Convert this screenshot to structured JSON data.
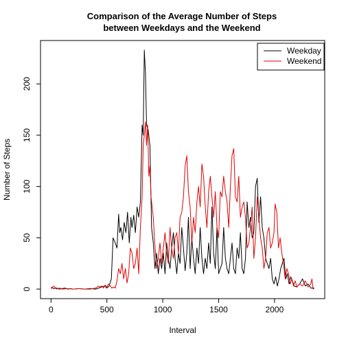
{
  "chart_data": {
    "type": "line",
    "title": [
      "Comparison of the Average Number of Steps",
      "between Weekdays and the Weekend"
    ],
    "xlabel": "Interval",
    "ylabel": "Number of Steps",
    "xlim": [
      -94,
      2449
    ],
    "ylim": [
      -9.3,
      242.3
    ],
    "xticks": [
      0,
      500,
      1000,
      1500,
      2000
    ],
    "yticks": [
      0,
      50,
      100,
      150,
      200
    ],
    "grid": false,
    "legend_position": "top-right",
    "series": [
      {
        "name": "Weekday",
        "color": "#000000",
        "points": [
          [
            0,
            2
          ],
          [
            25,
            0.5
          ],
          [
            50,
            1
          ],
          [
            75,
            0
          ],
          [
            100,
            0.5
          ],
          [
            125,
            1
          ],
          [
            150,
            0
          ],
          [
            175,
            0.5
          ],
          [
            200,
            0
          ],
          [
            250,
            0.5
          ],
          [
            300,
            0
          ],
          [
            350,
            0.5
          ],
          [
            400,
            0
          ],
          [
            450,
            2
          ],
          [
            480,
            3
          ],
          [
            500,
            1
          ],
          [
            520,
            3
          ],
          [
            540,
            10
          ],
          [
            555,
            50
          ],
          [
            575,
            45
          ],
          [
            590,
            40
          ],
          [
            605,
            73
          ],
          [
            615,
            55
          ],
          [
            625,
            60
          ],
          [
            640,
            48
          ],
          [
            655,
            65
          ],
          [
            670,
            55
          ],
          [
            685,
            75
          ],
          [
            700,
            45
          ],
          [
            715,
            70
          ],
          [
            725,
            60
          ],
          [
            740,
            72
          ],
          [
            755,
            55
          ],
          [
            770,
            80
          ],
          [
            785,
            70
          ],
          [
            800,
            85
          ],
          [
            815,
            160
          ],
          [
            825,
            150
          ],
          [
            835,
            233
          ],
          [
            845,
            210
          ],
          [
            855,
            160
          ],
          [
            870,
            155
          ],
          [
            885,
            140
          ],
          [
            900,
            60
          ],
          [
            915,
            45
          ],
          [
            930,
            20
          ],
          [
            945,
            35
          ],
          [
            960,
            15
          ],
          [
            975,
            30
          ],
          [
            990,
            20
          ],
          [
            1005,
            35
          ],
          [
            1020,
            15
          ],
          [
            1035,
            45
          ],
          [
            1050,
            30
          ],
          [
            1065,
            20
          ],
          [
            1080,
            40
          ],
          [
            1095,
            55
          ],
          [
            1110,
            30
          ],
          [
            1125,
            15
          ],
          [
            1140,
            35
          ],
          [
            1155,
            25
          ],
          [
            1170,
            60
          ],
          [
            1185,
            40
          ],
          [
            1200,
            18
          ],
          [
            1215,
            35
          ],
          [
            1230,
            70
          ],
          [
            1245,
            20
          ],
          [
            1260,
            50
          ],
          [
            1275,
            30
          ],
          [
            1290,
            15
          ],
          [
            1305,
            40
          ],
          [
            1320,
            25
          ],
          [
            1335,
            60
          ],
          [
            1350,
            30
          ],
          [
            1365,
            15
          ],
          [
            1380,
            30
          ],
          [
            1395,
            20
          ],
          [
            1410,
            45
          ],
          [
            1425,
            25
          ],
          [
            1440,
            80
          ],
          [
            1455,
            35
          ],
          [
            1470,
            20
          ],
          [
            1485,
            60
          ],
          [
            1500,
            15
          ],
          [
            1515,
            20
          ],
          [
            1530,
            25
          ],
          [
            1545,
            60
          ],
          [
            1560,
            30
          ],
          [
            1575,
            20
          ],
          [
            1590,
            15
          ],
          [
            1605,
            30
          ],
          [
            1620,
            45
          ],
          [
            1635,
            20
          ],
          [
            1650,
            15
          ],
          [
            1665,
            40
          ],
          [
            1680,
            30
          ],
          [
            1695,
            55
          ],
          [
            1710,
            20
          ],
          [
            1725,
            15
          ],
          [
            1740,
            30
          ],
          [
            1755,
            85
          ],
          [
            1770,
            60
          ],
          [
            1785,
            70
          ],
          [
            1800,
            50
          ],
          [
            1815,
            55
          ],
          [
            1830,
            100
          ],
          [
            1845,
            108
          ],
          [
            1860,
            65
          ],
          [
            1875,
            90
          ],
          [
            1890,
            60
          ],
          [
            1905,
            50
          ],
          [
            1920,
            30
          ],
          [
            1935,
            25
          ],
          [
            1950,
            20
          ],
          [
            1965,
            30
          ],
          [
            1980,
            10
          ],
          [
            1995,
            5
          ],
          [
            2010,
            12
          ],
          [
            2025,
            3
          ],
          [
            2040,
            10
          ],
          [
            2055,
            20
          ],
          [
            2070,
            25
          ],
          [
            2085,
            30
          ],
          [
            2100,
            10
          ],
          [
            2115,
            15
          ],
          [
            2130,
            5
          ],
          [
            2145,
            12
          ],
          [
            2160,
            8
          ],
          [
            2175,
            3
          ],
          [
            2200,
            2
          ],
          [
            2225,
            5
          ],
          [
            2250,
            10
          ],
          [
            2275,
            3
          ],
          [
            2300,
            5
          ],
          [
            2325,
            1
          ],
          [
            2355,
            1
          ]
        ]
      },
      {
        "name": "Weekend",
        "color": "#dd0000",
        "points": [
          [
            0,
            0
          ],
          [
            25,
            3
          ],
          [
            50,
            0
          ],
          [
            75,
            1
          ],
          [
            100,
            0
          ],
          [
            150,
            0.5
          ],
          [
            200,
            0
          ],
          [
            250,
            0.5
          ],
          [
            300,
            0
          ],
          [
            350,
            0
          ],
          [
            400,
            1
          ],
          [
            425,
            3
          ],
          [
            440,
            2
          ],
          [
            455,
            3
          ],
          [
            470,
            1
          ],
          [
            485,
            4
          ],
          [
            500,
            2
          ],
          [
            515,
            5
          ],
          [
            530,
            3
          ],
          [
            545,
            1
          ],
          [
            560,
            2
          ],
          [
            575,
            1
          ],
          [
            590,
            8
          ],
          [
            605,
            20
          ],
          [
            620,
            15
          ],
          [
            635,
            25
          ],
          [
            650,
            10
          ],
          [
            665,
            20
          ],
          [
            680,
            6
          ],
          [
            695,
            15
          ],
          [
            710,
            40
          ],
          [
            725,
            35
          ],
          [
            740,
            20
          ],
          [
            755,
            25
          ],
          [
            770,
            40
          ],
          [
            785,
            15
          ],
          [
            800,
            60
          ],
          [
            815,
            90
          ],
          [
            825,
            140
          ],
          [
            835,
            150
          ],
          [
            845,
            163
          ],
          [
            855,
            140
          ],
          [
            865,
            160
          ],
          [
            875,
            110
          ],
          [
            885,
            120
          ],
          [
            895,
            90
          ],
          [
            905,
            80
          ],
          [
            915,
            70
          ],
          [
            925,
            50
          ],
          [
            935,
            35
          ],
          [
            945,
            20
          ],
          [
            960,
            30
          ],
          [
            975,
            45
          ],
          [
            990,
            25
          ],
          [
            1005,
            40
          ],
          [
            1020,
            55
          ],
          [
            1035,
            35
          ],
          [
            1050,
            25
          ],
          [
            1065,
            60
          ],
          [
            1080,
            40
          ],
          [
            1095,
            30
          ],
          [
            1110,
            50
          ],
          [
            1125,
            55
          ],
          [
            1140,
            35
          ],
          [
            1155,
            70
          ],
          [
            1170,
            75
          ],
          [
            1185,
            90
          ],
          [
            1200,
            120
          ],
          [
            1215,
            130
          ],
          [
            1230,
            95
          ],
          [
            1245,
            80
          ],
          [
            1260,
            45
          ],
          [
            1275,
            70
          ],
          [
            1290,
            55
          ],
          [
            1305,
            85
          ],
          [
            1320,
            100
          ],
          [
            1335,
            80
          ],
          [
            1350,
            122
          ],
          [
            1365,
            110
          ],
          [
            1380,
            80
          ],
          [
            1395,
            60
          ],
          [
            1410,
            95
          ],
          [
            1425,
            110
          ],
          [
            1440,
            90
          ],
          [
            1455,
            70
          ],
          [
            1470,
            95
          ],
          [
            1485,
            60
          ],
          [
            1500,
            50
          ],
          [
            1515,
            95
          ],
          [
            1530,
            90
          ],
          [
            1545,
            110
          ],
          [
            1560,
            95
          ],
          [
            1575,
            85
          ],
          [
            1590,
            60
          ],
          [
            1605,
            100
          ],
          [
            1620,
            130
          ],
          [
            1635,
            137
          ],
          [
            1650,
            90
          ],
          [
            1665,
            85
          ],
          [
            1680,
            110
          ],
          [
            1695,
            70
          ],
          [
            1710,
            80
          ],
          [
            1725,
            85
          ],
          [
            1740,
            70
          ],
          [
            1755,
            40
          ],
          [
            1770,
            45
          ],
          [
            1785,
            60
          ],
          [
            1800,
            80
          ],
          [
            1815,
            30
          ],
          [
            1830,
            50
          ],
          [
            1845,
            90
          ],
          [
            1860,
            70
          ],
          [
            1875,
            50
          ],
          [
            1890,
            40
          ],
          [
            1905,
            20
          ],
          [
            1920,
            30
          ],
          [
            1935,
            55
          ],
          [
            1950,
            60
          ],
          [
            1965,
            40
          ],
          [
            1980,
            45
          ],
          [
            1995,
            55
          ],
          [
            2005,
            83
          ],
          [
            2020,
            75
          ],
          [
            2035,
            40
          ],
          [
            2050,
            50
          ],
          [
            2065,
            35
          ],
          [
            2080,
            25
          ],
          [
            2095,
            10
          ],
          [
            2110,
            20
          ],
          [
            2125,
            15
          ],
          [
            2140,
            5
          ],
          [
            2155,
            10
          ],
          [
            2170,
            3
          ],
          [
            2185,
            8
          ],
          [
            2200,
            2
          ],
          [
            2225,
            5
          ],
          [
            2250,
            3
          ],
          [
            2275,
            8
          ],
          [
            2300,
            2
          ],
          [
            2325,
            5
          ],
          [
            2335,
            10
          ],
          [
            2345,
            0
          ],
          [
            2355,
            1
          ]
        ]
      }
    ]
  }
}
